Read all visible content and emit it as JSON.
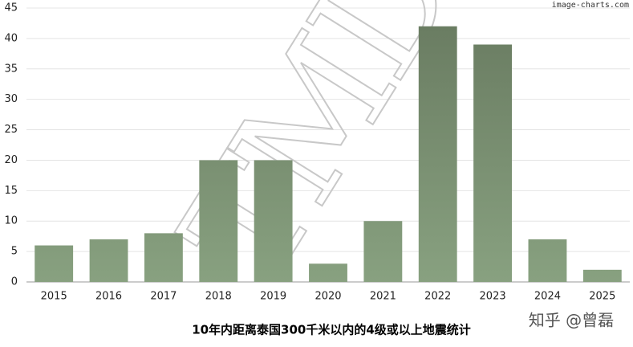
{
  "chart_data": {
    "type": "bar",
    "title": "10年内距离泰国300千米以内的4级或以上地震统计",
    "categories": [
      "2015",
      "2016",
      "2017",
      "2018",
      "2019",
      "2020",
      "2021",
      "2022",
      "2023",
      "2024",
      "2025"
    ],
    "values": [
      6,
      7,
      8,
      20,
      20,
      3,
      10,
      42,
      39,
      7,
      2
    ],
    "gradient": [
      "#687a60",
      "#88a180"
    ],
    "ylim": [
      0,
      45
    ],
    "yticks": [
      0,
      5,
      10,
      15,
      20,
      25,
      30,
      35,
      40,
      45
    ],
    "grid": true,
    "watermarks": [
      "image-charts.com",
      "TMD",
      "知乎 @曾磊"
    ]
  }
}
